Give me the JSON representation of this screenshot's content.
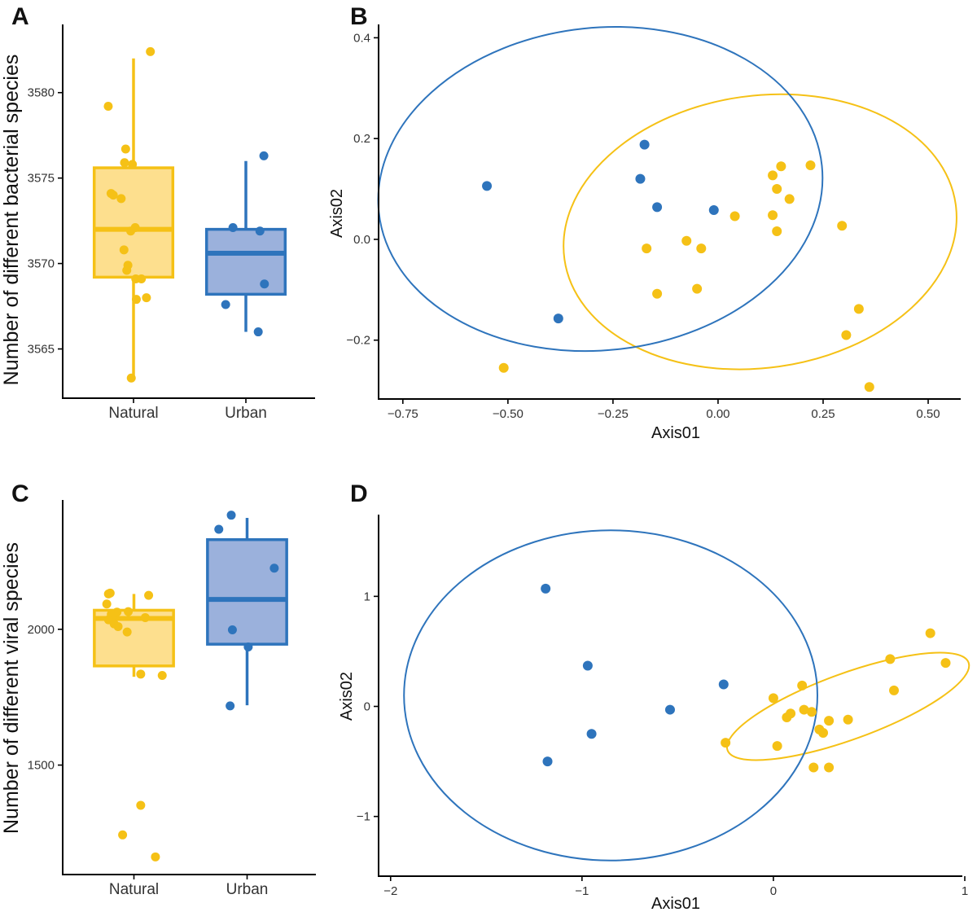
{
  "colors": {
    "natural": "#F5C116",
    "natural_fill": "#FDD97A",
    "urban": "#2E74BC",
    "urban_fill": "#8AA3D6"
  },
  "chart_data": [
    {
      "panel": "A",
      "type": "box",
      "ylabel": "Number of different bacterial species",
      "xlabel": "",
      "categories": [
        "Natural",
        "Urban"
      ],
      "ylim": [
        3562.5,
        3583.8
      ],
      "yticks": [
        3565,
        3570,
        3575,
        3580
      ],
      "groups": [
        {
          "name": "Natural",
          "color": "natural",
          "box": {
            "q1": 3569.2,
            "median": 3572.0,
            "q3": 3575.6,
            "lower_whisker": 3563.4,
            "upper_whisker": 3582.0
          },
          "points": [
            {
              "jx": 0.3,
              "y": 3582.4
            },
            {
              "jx": -0.45,
              "y": 3579.2
            },
            {
              "jx": -0.14,
              "y": 3576.7
            },
            {
              "jx": -0.16,
              "y": 3575.9
            },
            {
              "jx": -0.02,
              "y": 3575.8
            },
            {
              "jx": -0.4,
              "y": 3574.1
            },
            {
              "jx": -0.36,
              "y": 3574.0
            },
            {
              "jx": -0.22,
              "y": 3573.8
            },
            {
              "jx": 0.03,
              "y": 3572.1
            },
            {
              "jx": -0.05,
              "y": 3571.9
            },
            {
              "jx": -0.17,
              "y": 3570.8
            },
            {
              "jx": -0.1,
              "y": 3569.9
            },
            {
              "jx": -0.12,
              "y": 3569.6
            },
            {
              "jx": 0.14,
              "y": 3569.1
            },
            {
              "jx": 0.04,
              "y": 3569.1
            },
            {
              "jx": 0.23,
              "y": 3568.0
            },
            {
              "jx": 0.05,
              "y": 3567.9
            },
            {
              "jx": -0.04,
              "y": 3563.3
            }
          ]
        },
        {
          "name": "Urban",
          "color": "urban",
          "box": {
            "q1": 3568.2,
            "median": 3570.6,
            "q3": 3572.0,
            "lower_whisker": 3566.0,
            "upper_whisker": 3576.0
          },
          "points": [
            {
              "jx": 0.32,
              "y": 3576.3
            },
            {
              "jx": -0.23,
              "y": 3572.1
            },
            {
              "jx": 0.25,
              "y": 3571.9
            },
            {
              "jx": 0.33,
              "y": 3568.8
            },
            {
              "jx": -0.36,
              "y": 3567.6
            },
            {
              "jx": 0.22,
              "y": 3566.0
            }
          ]
        }
      ]
    },
    {
      "panel": "B",
      "type": "scatter",
      "xlabel": "Axis01",
      "ylabel": "Axis02",
      "xlim": [
        -0.8,
        0.56
      ],
      "ylim": [
        -0.32,
        0.42
      ],
      "xticks": [
        -0.75,
        -0.5,
        -0.25,
        0,
        0.25,
        0.5
      ],
      "xticklabels": [
        "−0.75",
        "−0.50",
        "−0.25",
        "0.00",
        "0.25",
        "0.50"
      ],
      "yticks": [
        -0.2,
        0,
        0.2,
        0.4
      ],
      "yticklabels": [
        "−0.2",
        "0.0",
        "0.2",
        "0.4"
      ],
      "series": [
        {
          "name": "Natural",
          "color": "natural",
          "ellipse": {
            "cx": 0.1,
            "cy": 0.015,
            "rx": 0.47,
            "ry": 0.27,
            "rotation_deg": -8
          },
          "points": [
            [
              -0.51,
              -0.255
            ],
            [
              -0.17,
              -0.018
            ],
            [
              -0.145,
              -0.108
            ],
            [
              -0.075,
              -0.003
            ],
            [
              -0.05,
              -0.098
            ],
            [
              -0.04,
              -0.018
            ],
            [
              0.04,
              0.046
            ],
            [
              0.13,
              0.127
            ],
            [
              0.15,
              0.145
            ],
            [
              0.14,
              0.1
            ],
            [
              0.17,
              0.08
            ],
            [
              0.13,
              0.048
            ],
            [
              0.14,
              0.016
            ],
            [
              0.22,
              0.147
            ],
            [
              0.295,
              0.027
            ],
            [
              0.305,
              -0.19
            ],
            [
              0.335,
              -0.138
            ],
            [
              0.36,
              -0.293
            ]
          ]
        },
        {
          "name": "Urban",
          "color": "urban",
          "ellipse": {
            "cx": -0.28,
            "cy": 0.1,
            "rx": 0.53,
            "ry": 0.32,
            "rotation_deg": -6
          },
          "points": [
            [
              -0.55,
              0.106
            ],
            [
              -0.38,
              -0.157
            ],
            [
              -0.175,
              0.188
            ],
            [
              -0.185,
              0.12
            ],
            [
              -0.145,
              0.064
            ],
            [
              -0.01,
              0.058
            ]
          ]
        }
      ]
    },
    {
      "panel": "C",
      "type": "box",
      "ylabel": "Number of different viral species",
      "xlabel": "",
      "categories": [
        "Natural",
        "Urban"
      ],
      "ylim": [
        1100,
        2500
      ],
      "yticks": [
        1500,
        2000
      ],
      "groups": [
        {
          "name": "Natural",
          "color": "natural",
          "box": {
            "q1": 1865,
            "median": 2040,
            "q3": 2070,
            "lower_whisker": 1825,
            "upper_whisker": 2130
          },
          "points": [
            {
              "jx": -0.42,
              "y": 2133
            },
            {
              "jx": -0.45,
              "y": 2130
            },
            {
              "jx": 0.26,
              "y": 2125
            },
            {
              "jx": -0.48,
              "y": 2093
            },
            {
              "jx": -0.3,
              "y": 2063
            },
            {
              "jx": -0.1,
              "y": 2065
            },
            {
              "jx": -0.4,
              "y": 2055
            },
            {
              "jx": 0.2,
              "y": 2043
            },
            {
              "jx": -0.45,
              "y": 2035
            },
            {
              "jx": -0.35,
              "y": 2020
            },
            {
              "jx": -0.28,
              "y": 2010
            },
            {
              "jx": -0.12,
              "y": 1990
            },
            {
              "jx": 0.12,
              "y": 1835
            },
            {
              "jx": 0.5,
              "y": 1830
            },
            {
              "jx": 0.12,
              "y": 1352
            },
            {
              "jx": -0.2,
              "y": 1243
            },
            {
              "jx": 0.38,
              "y": 1162
            }
          ]
        },
        {
          "name": "Urban",
          "color": "urban",
          "box": {
            "q1": 1945,
            "median": 2110,
            "q3": 2330,
            "lower_whisker": 1720,
            "upper_whisker": 2410
          },
          "points": [
            {
              "jx": -0.28,
              "y": 2420
            },
            {
              "jx": -0.5,
              "y": 2368
            },
            {
              "jx": 0.48,
              "y": 2225
            },
            {
              "jx": -0.26,
              "y": 1998
            },
            {
              "jx": 0.02,
              "y": 1935
            },
            {
              "jx": -0.3,
              "y": 1718
            }
          ]
        }
      ]
    },
    {
      "panel": "D",
      "type": "scatter",
      "xlabel": "Axis01",
      "ylabel": "Axis02",
      "xlim": [
        -2.05,
        1.0
      ],
      "ylim": [
        -1.55,
        1.75
      ],
      "xticks": [
        -2,
        -1,
        0,
        1
      ],
      "xticklabels": [
        "−2",
        "−1",
        "0",
        "1"
      ],
      "yticks": [
        -1,
        0,
        1
      ],
      "yticklabels": [
        "−1",
        "0",
        "1"
      ],
      "series": [
        {
          "name": "Natural",
          "color": "natural",
          "ellipse": {
            "cx": 0.39,
            "cy": 0.0,
            "rx": 0.67,
            "ry": 0.3,
            "rotation_deg": -20
          },
          "points": [
            [
              0.82,
              0.665
            ],
            [
              0.9,
              0.395
            ],
            [
              0.61,
              0.43
            ],
            [
              0.63,
              0.145
            ],
            [
              0.15,
              0.19
            ],
            [
              0.0,
              0.075
            ],
            [
              0.16,
              -0.03
            ],
            [
              0.2,
              -0.05
            ],
            [
              0.09,
              -0.065
            ],
            [
              0.07,
              -0.1
            ],
            [
              0.29,
              -0.13
            ],
            [
              0.39,
              -0.12
            ],
            [
              0.24,
              -0.21
            ],
            [
              0.26,
              -0.24
            ],
            [
              -0.25,
              -0.33
            ],
            [
              0.02,
              -0.36
            ],
            [
              0.21,
              -0.555
            ],
            [
              0.29,
              -0.555
            ]
          ]
        },
        {
          "name": "Urban",
          "color": "urban",
          "ellipse": {
            "cx": -0.85,
            "cy": 0.1,
            "rx": 1.08,
            "ry": 1.5,
            "rotation_deg": 0
          },
          "points": [
            [
              -1.19,
              1.07
            ],
            [
              -0.97,
              0.37
            ],
            [
              -0.26,
              0.2
            ],
            [
              -0.54,
              -0.03
            ],
            [
              -0.95,
              -0.25
            ],
            [
              -1.18,
              -0.5
            ]
          ]
        }
      ]
    }
  ]
}
